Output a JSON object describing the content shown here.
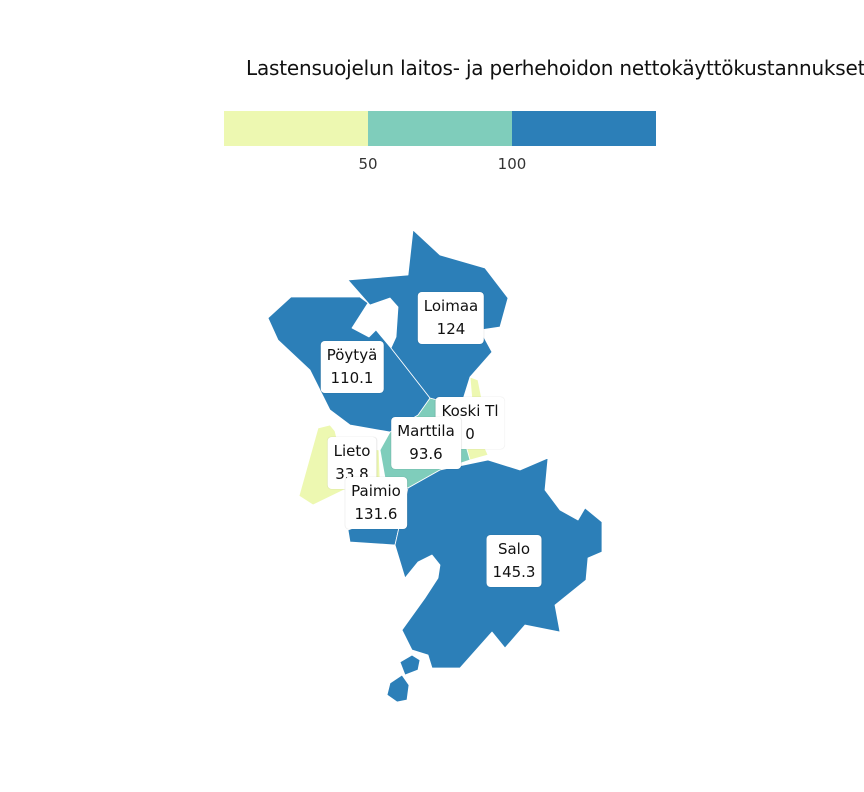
{
  "title": "Lastensuojelun laitos- ja perhehoidon nettokäyttökustannukset",
  "legend": {
    "bins": [
      {
        "color": "#edf8b1",
        "max": 50
      },
      {
        "color": "#7fcdbb",
        "min": 50,
        "max": 100
      },
      {
        "color": "#2c7fb8",
        "min": 100
      }
    ],
    "ticks": [
      "50",
      "100"
    ]
  },
  "regions": [
    {
      "name": "Loimaa",
      "value": "124",
      "color": "#2c7fb8"
    },
    {
      "name": "Pöytyä",
      "value": "110.1",
      "color": "#2c7fb8"
    },
    {
      "name": "Koski Tl",
      "value": "0",
      "color": "#edf8b1"
    },
    {
      "name": "Marttila",
      "value": "93.6",
      "color": "#7fcdbb"
    },
    {
      "name": "Lieto",
      "value": "33.8",
      "color": "#edf8b1"
    },
    {
      "name": "Paimio",
      "value": "131.6",
      "color": "#2c7fb8"
    },
    {
      "name": "Salo",
      "value": "145.3",
      "color": "#2c7fb8"
    }
  ]
}
